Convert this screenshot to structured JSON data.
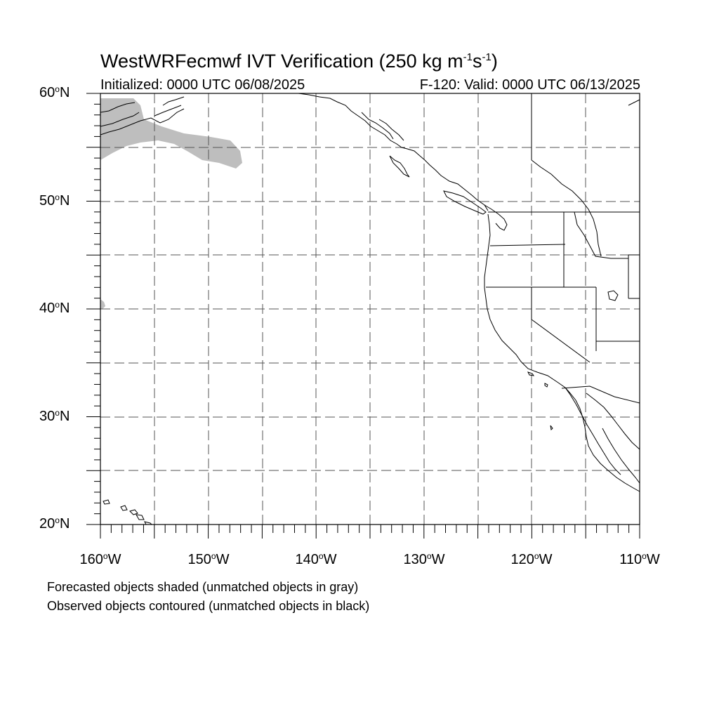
{
  "title": {
    "prefix": "WestWRFecmwf IVT Verification (250 kg m",
    "exp1": "-1",
    "mid": "s",
    "exp2": "-1",
    "suffix": ")"
  },
  "initialized": "Initialized: 0000 UTC 06/08/2025",
  "valid": "F-120: Valid: 0000 UTC 06/13/2025",
  "lat_labels": [
    {
      "value": 60,
      "text": "60",
      "hemi": "N"
    },
    {
      "value": 50,
      "text": "50",
      "hemi": "N"
    },
    {
      "value": 40,
      "text": "40",
      "hemi": "N"
    },
    {
      "value": 30,
      "text": "30",
      "hemi": "N"
    },
    {
      "value": 20,
      "text": "20",
      "hemi": "N"
    }
  ],
  "lon_labels": [
    {
      "value": -160,
      "text": "160",
      "hemi": "W"
    },
    {
      "value": -150,
      "text": "150",
      "hemi": "W"
    },
    {
      "value": -140,
      "text": "140",
      "hemi": "W"
    },
    {
      "value": -130,
      "text": "130",
      "hemi": "W"
    },
    {
      "value": -120,
      "text": "120",
      "hemi": "W"
    },
    {
      "value": -110,
      "text": "110",
      "hemi": "W"
    }
  ],
  "degree_symbol": "o",
  "captions": [
    "Forecasted objects shaded (unmatched objects in gray)",
    "Observed objects contoured (unmatched objects in black)"
  ],
  "colors": {
    "unmatched_forecast_fill": "#bebebe",
    "coastline": "#000000",
    "grid": "#555555"
  },
  "map_extent": {
    "lon_min": -160,
    "lon_max": -110,
    "lat_min": 20,
    "lat_max": 60
  },
  "grid_interval_degrees": 5
}
